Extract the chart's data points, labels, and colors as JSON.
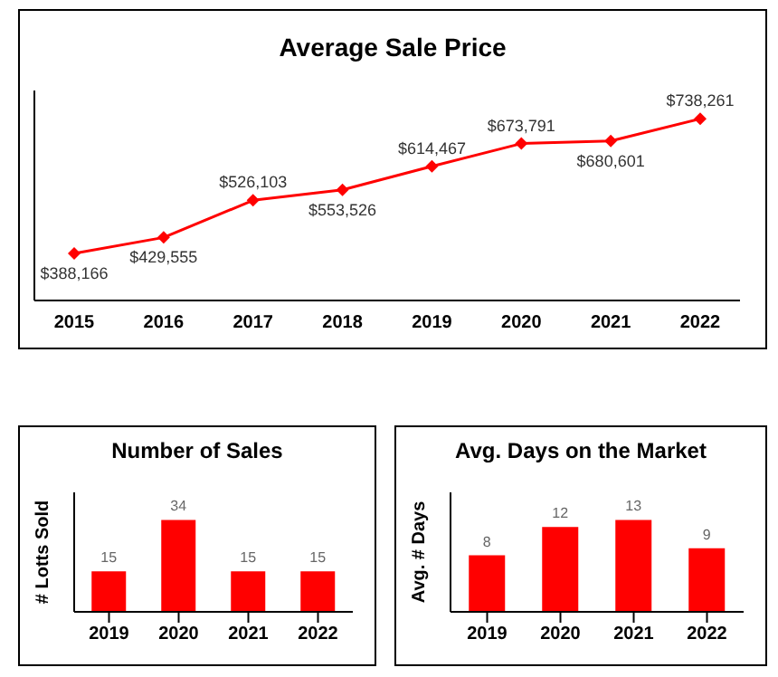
{
  "chart_data": [
    {
      "type": "line",
      "title": "Average Sale Price",
      "categories": [
        "2015",
        "2016",
        "2017",
        "2018",
        "2019",
        "2020",
        "2021",
        "2022"
      ],
      "series": [
        {
          "color": "#ff0000",
          "values": [
            388166,
            429555,
            526103,
            553526,
            614467,
            673791,
            680601,
            738261
          ],
          "value_labels": [
            "$388,166",
            "$429,555",
            "$526,103",
            "$553,526",
            "$614,467",
            "$673,791",
            "$680,601",
            "$738,261"
          ]
        }
      ],
      "marker": "diamond",
      "line_style": "solid",
      "grid": false,
      "legend": false
    },
    {
      "type": "bar",
      "title": "Number of Sales",
      "ylabel": "# Lotts Sold",
      "categories": [
        "2019",
        "2020",
        "2021",
        "2022"
      ],
      "series": [
        {
          "color": "#ff0000",
          "values": [
            15,
            34,
            15,
            15
          ]
        }
      ],
      "data_labels": true,
      "grid": false,
      "legend": false
    },
    {
      "type": "bar",
      "title": "Avg. Days on the Market",
      "ylabel": "Avg. # Days",
      "categories": [
        "2019",
        "2020",
        "2021",
        "2022"
      ],
      "series": [
        {
          "color": "#ff0000",
          "values": [
            8,
            12,
            13,
            9
          ]
        }
      ],
      "data_labels": true,
      "grid": false,
      "legend": false
    }
  ]
}
